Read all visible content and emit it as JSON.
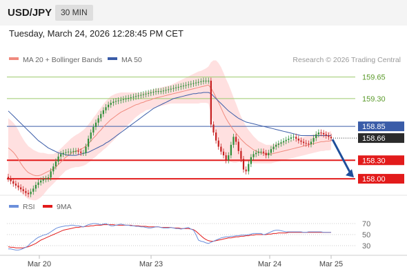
{
  "header": {
    "pair": "USD/JPY",
    "interval": "30 MIN"
  },
  "datetime": "Tuesday, March 24, 2026 12:28:45 PM CET",
  "legend": {
    "ma20": "MA 20 + Bollinger Bands",
    "ma50": "MA 50",
    "copyright": "Research © 2026 Trading Central"
  },
  "rsi_legend": {
    "rsi": "RSI",
    "ma": "9MA"
  },
  "colors": {
    "ma20": "#f08a7e",
    "ma50": "#3a5ca8",
    "band": "#ffd6d6",
    "resistance": "#9bc96b",
    "support": "#e21b1b",
    "rsi": "#6b8fdb",
    "rsi_ma": "#e21b1b",
    "arrow": "#1f4e9a",
    "candle_up": "#2f8f3a",
    "candle_down": "#c62020"
  },
  "chart_data": [
    {
      "type": "candlestick",
      "ylim": [
        157.9,
        159.78
      ],
      "x_ticks": [
        "Mar 20",
        "Mar 23",
        "Mar 24",
        "Mar 25"
      ],
      "levels": [
        {
          "value": 159.65,
          "label": "159.65",
          "kind": "resistance"
        },
        {
          "value": 159.3,
          "label": "159.30",
          "kind": "resistance"
        },
        {
          "value": 158.85,
          "label": "158.85",
          "kind": "pivot"
        },
        {
          "value": 158.3,
          "label": "158.30",
          "kind": "support"
        },
        {
          "value": 158.0,
          "label": "158.00",
          "kind": "support"
        }
      ],
      "last_price": {
        "value": 158.66,
        "label": "158.66"
      },
      "close": [
        158.0,
        157.96,
        157.92,
        157.89,
        157.86,
        157.83,
        157.8,
        157.77,
        157.75,
        157.79,
        157.84,
        157.9,
        157.94,
        157.97,
        157.99,
        158.0,
        158.02,
        158.12,
        158.2,
        158.28,
        158.36,
        158.4,
        158.42,
        158.43,
        158.44,
        158.44,
        158.45,
        158.45,
        158.44,
        158.42,
        158.42,
        158.52,
        158.65,
        158.75,
        158.84,
        158.91,
        158.98,
        159.05,
        159.11,
        159.16,
        159.2,
        159.23,
        159.25,
        159.26,
        159.27,
        159.28,
        159.29,
        159.3,
        159.31,
        159.32,
        159.33,
        159.34,
        159.35,
        159.36,
        159.37,
        159.38,
        159.39,
        159.4,
        159.41,
        159.42,
        159.42,
        159.42,
        159.43,
        159.44,
        159.45,
        159.46,
        159.47,
        159.48,
        159.49,
        159.5,
        159.51,
        159.52,
        159.53,
        159.54,
        159.55,
        159.56,
        159.57,
        159.58,
        159.59,
        159.59,
        159.59,
        158.88,
        158.75,
        158.62,
        158.52,
        158.44,
        158.38,
        158.3,
        158.38,
        158.55,
        158.68,
        158.6,
        158.45,
        158.32,
        158.15,
        158.12,
        158.24,
        158.35,
        158.4,
        158.42,
        158.44,
        158.44,
        158.42,
        158.38,
        158.42,
        158.48,
        158.52,
        158.55,
        158.57,
        158.59,
        158.61,
        158.63,
        158.65,
        158.67,
        158.68,
        158.65,
        158.62,
        158.6,
        158.58,
        158.57,
        158.56,
        158.6,
        158.66,
        158.72,
        158.75,
        158.74,
        158.72,
        158.7,
        158.68,
        158.66
      ],
      "ma20": [
        158.5,
        158.47,
        158.43,
        158.38,
        158.32,
        158.25,
        158.19,
        158.14,
        158.1,
        158.08,
        158.06,
        158.05,
        158.05,
        158.06,
        158.08,
        158.1,
        158.12,
        158.14,
        158.16,
        158.19,
        158.23,
        158.27,
        158.31,
        158.35,
        158.38,
        158.41,
        158.43,
        158.45,
        158.46,
        158.48,
        158.5,
        158.53,
        158.57,
        158.61,
        158.66,
        158.7,
        158.75,
        158.79,
        158.84,
        158.88,
        158.92,
        158.96,
        158.99,
        159.02,
        159.05,
        159.08,
        159.1,
        159.12,
        159.14,
        159.16,
        159.18,
        159.2,
        159.21,
        159.23,
        159.24,
        159.26,
        159.27,
        159.28,
        159.3,
        159.31,
        159.32,
        159.33,
        159.34,
        159.35,
        159.36,
        159.37,
        159.38,
        159.39,
        159.4,
        159.41,
        159.42,
        159.43,
        159.44,
        159.45,
        159.46,
        159.47,
        159.48,
        159.49,
        159.5,
        159.51,
        159.52,
        159.47,
        159.4,
        159.32,
        159.24,
        159.15,
        159.06,
        158.98,
        158.91,
        158.85,
        158.79,
        158.74,
        158.69,
        158.64,
        158.6,
        158.56,
        158.53,
        158.5,
        158.47,
        158.45,
        158.43,
        158.42,
        158.41,
        158.4,
        158.4,
        158.4,
        158.41,
        158.42,
        158.43,
        158.44,
        158.45,
        158.46,
        158.47,
        158.48,
        158.49,
        158.5,
        158.51,
        158.52,
        158.53,
        158.54,
        158.55,
        158.56,
        158.57,
        158.58,
        158.59,
        158.6,
        158.6,
        158.61,
        158.61,
        158.62
      ],
      "ma50": [
        159.1,
        159.06,
        159.02,
        158.98,
        158.94,
        158.9,
        158.86,
        158.82,
        158.78,
        158.74,
        158.7,
        158.66,
        158.62,
        158.59,
        158.56,
        158.53,
        158.5,
        158.48,
        158.46,
        158.44,
        158.42,
        158.41,
        158.4,
        158.39,
        158.38,
        158.38,
        158.38,
        158.38,
        158.39,
        158.4,
        158.41,
        158.42,
        158.43,
        158.45,
        158.47,
        158.49,
        158.51,
        158.53,
        158.55,
        158.58,
        158.6,
        158.63,
        158.66,
        158.69,
        158.72,
        158.75,
        158.78,
        158.81,
        158.84,
        158.87,
        158.9,
        158.93,
        158.96,
        158.99,
        159.02,
        159.05,
        159.08,
        159.11,
        159.14,
        159.16,
        159.18,
        159.2,
        159.22,
        159.24,
        159.26,
        159.28,
        159.3,
        159.31,
        159.32,
        159.33,
        159.34,
        159.35,
        159.36,
        159.37,
        159.38,
        159.38,
        159.39,
        159.39,
        159.4,
        159.4,
        159.4,
        159.38,
        159.34,
        159.3,
        159.26,
        159.22,
        159.18,
        159.14,
        159.1,
        159.07,
        159.04,
        159.01,
        158.98,
        158.96,
        158.94,
        158.92,
        158.91,
        158.9,
        158.89,
        158.88,
        158.87,
        158.86,
        158.85,
        158.84,
        158.83,
        158.82,
        158.81,
        158.8,
        158.79,
        158.78,
        158.77,
        158.76,
        158.75,
        158.74,
        158.73,
        158.72,
        158.71,
        158.7,
        158.7,
        158.7,
        158.7,
        158.7,
        158.7,
        158.7,
        158.7,
        158.7,
        158.7,
        158.7,
        158.7,
        158.7
      ],
      "band_width": [
        0.48,
        0.48,
        0.48,
        0.48,
        0.47,
        0.46,
        0.45,
        0.44,
        0.43,
        0.42,
        0.41,
        0.4,
        0.38,
        0.36,
        0.34,
        0.31,
        0.28,
        0.26,
        0.24,
        0.23,
        0.22,
        0.22,
        0.22,
        0.22,
        0.23,
        0.24,
        0.25,
        0.26,
        0.27,
        0.28,
        0.29,
        0.3,
        0.31,
        0.32,
        0.33,
        0.34,
        0.35,
        0.36,
        0.37,
        0.38,
        0.38,
        0.38,
        0.37,
        0.36,
        0.34,
        0.32,
        0.3,
        0.28,
        0.26,
        0.24,
        0.22,
        0.2,
        0.18,
        0.17,
        0.16,
        0.15,
        0.15,
        0.15,
        0.15,
        0.15,
        0.15,
        0.15,
        0.15,
        0.15,
        0.15,
        0.15,
        0.16,
        0.17,
        0.18,
        0.19,
        0.2,
        0.21,
        0.22,
        0.23,
        0.24,
        0.25,
        0.26,
        0.26,
        0.27,
        0.28,
        0.3,
        0.42,
        0.52,
        0.6,
        0.64,
        0.66,
        0.66,
        0.64,
        0.62,
        0.58,
        0.53,
        0.48,
        0.42,
        0.37,
        0.33,
        0.29,
        0.26,
        0.24,
        0.22,
        0.2,
        0.18,
        0.17,
        0.16,
        0.15,
        0.15,
        0.15,
        0.15,
        0.15,
        0.15,
        0.15,
        0.15,
        0.15,
        0.15,
        0.15,
        0.15,
        0.15,
        0.15,
        0.15,
        0.15,
        0.15,
        0.15,
        0.15,
        0.15,
        0.15,
        0.15,
        0.15,
        0.15,
        0.15,
        0.15,
        0.15
      ]
    },
    {
      "type": "line",
      "title": "RSI",
      "ylim": [
        15,
        85
      ],
      "y_ticks": [
        30,
        50,
        70
      ],
      "series": [
        {
          "name": "RSI",
          "values": [
            24,
            24,
            23,
            22,
            22,
            23,
            25,
            27,
            30,
            35,
            38,
            42,
            45,
            47,
            49,
            50,
            52,
            55,
            58,
            61,
            63,
            64,
            65,
            66,
            66,
            67,
            67,
            66,
            66,
            65,
            64,
            66,
            68,
            69,
            70,
            70,
            69,
            68,
            69,
            70,
            68,
            66,
            66,
            67,
            68,
            69,
            68,
            67,
            67,
            66,
            66,
            65,
            65,
            64,
            64,
            63,
            62,
            62,
            63,
            64,
            64,
            63,
            62,
            62,
            62,
            63,
            62,
            61,
            61,
            60,
            61,
            62,
            63,
            60,
            58,
            50,
            40,
            38,
            37,
            35,
            34,
            36,
            38,
            40,
            42,
            44,
            45,
            46,
            46,
            47,
            47,
            48,
            48,
            49,
            49,
            49,
            50,
            51,
            52,
            52,
            52,
            52,
            50,
            51,
            53,
            55,
            57,
            58,
            58,
            57,
            56,
            55,
            55,
            55,
            55,
            55,
            55,
            55,
            54,
            54,
            55,
            55,
            55,
            55,
            55,
            55,
            54,
            54,
            54,
            54
          ]
        },
        {
          "name": "9MA",
          "values": [
            28,
            27,
            27,
            26,
            26,
            26,
            26,
            27,
            28,
            30,
            32,
            34,
            37,
            40,
            42,
            44,
            46,
            48,
            50,
            52,
            54,
            56,
            58,
            59,
            60,
            61,
            62,
            63,
            63,
            64,
            64,
            65,
            65,
            66,
            66,
            67,
            67,
            67,
            68,
            68,
            68,
            68,
            68,
            67,
            67,
            67,
            67,
            67,
            67,
            67,
            66,
            66,
            66,
            65,
            65,
            65,
            64,
            64,
            64,
            64,
            64,
            63,
            63,
            63,
            63,
            63,
            62,
            62,
            62,
            61,
            61,
            61,
            61,
            60,
            59,
            56,
            52,
            48,
            44,
            41,
            39,
            38,
            38,
            39,
            40,
            41,
            42,
            43,
            44,
            44,
            45,
            46,
            46,
            47,
            47,
            48,
            48,
            49,
            49,
            50,
            50,
            50,
            50,
            50,
            51,
            51,
            52,
            52,
            53,
            53,
            53,
            53,
            54,
            54,
            54,
            54,
            54,
            54,
            54,
            54,
            54,
            54,
            54,
            54,
            54,
            54,
            54,
            54,
            54,
            54
          ]
        }
      ]
    }
  ]
}
